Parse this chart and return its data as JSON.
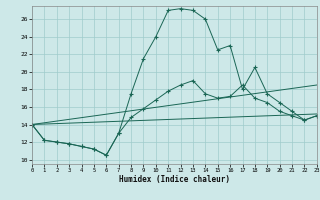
{
  "bg_color": "#cde8e8",
  "grid_color": "#a0cccc",
  "line_color": "#1a6655",
  "xlim": [
    0,
    23
  ],
  "ylim": [
    9.5,
    27.5
  ],
  "xticks": [
    0,
    1,
    2,
    3,
    4,
    5,
    6,
    7,
    8,
    9,
    10,
    11,
    12,
    13,
    14,
    15,
    16,
    17,
    18,
    19,
    20,
    21,
    22,
    23
  ],
  "yticks": [
    10,
    12,
    14,
    16,
    18,
    20,
    22,
    24,
    26
  ],
  "xlabel": "Humidex (Indice chaleur)",
  "curve1_x": [
    0,
    1,
    2,
    3,
    4,
    5,
    6,
    7,
    8,
    9,
    10,
    11,
    12,
    13,
    14,
    15,
    16,
    17,
    18,
    19,
    20,
    21,
    22,
    23
  ],
  "curve1_y": [
    14.0,
    12.2,
    12.0,
    11.8,
    11.5,
    11.2,
    10.5,
    13.0,
    17.5,
    21.5,
    24.0,
    27.0,
    27.2,
    27.0,
    26.0,
    22.5,
    23.0,
    18.0,
    20.5,
    17.5,
    16.5,
    15.5,
    14.5,
    15.0
  ],
  "curve2_x": [
    0,
    1,
    2,
    3,
    4,
    5,
    6,
    7,
    8,
    9,
    10,
    11,
    12,
    13,
    14,
    15,
    16,
    17,
    18,
    19,
    20,
    21,
    22,
    23
  ],
  "curve2_y": [
    14.0,
    12.2,
    12.0,
    11.8,
    11.5,
    11.2,
    10.5,
    13.0,
    14.8,
    15.8,
    16.8,
    17.8,
    18.5,
    19.0,
    17.5,
    17.0,
    17.2,
    18.5,
    17.0,
    16.5,
    15.5,
    15.0,
    14.5,
    15.0
  ],
  "line3_x": [
    0,
    23
  ],
  "line3_y": [
    14.0,
    18.5
  ],
  "line4_x": [
    0,
    23
  ],
  "line4_y": [
    14.0,
    15.2
  ]
}
